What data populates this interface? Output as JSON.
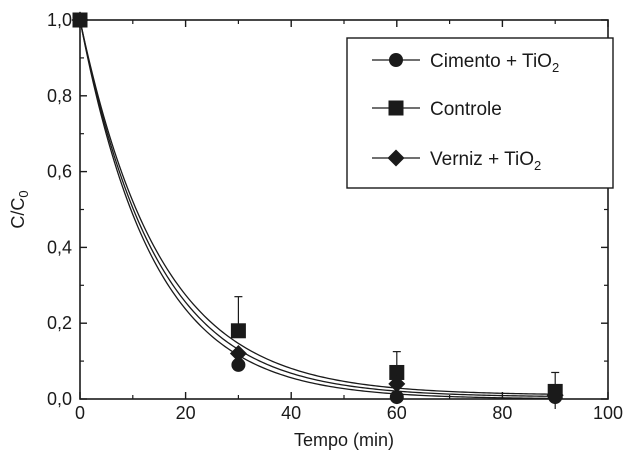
{
  "chart_data": {
    "type": "scatter",
    "xlabel": "Tempo (min)",
    "ylabel": {
      "main": "C/C",
      "sub": "0"
    },
    "xlim": [
      0,
      100
    ],
    "ylim": [
      0,
      1.0
    ],
    "xticks": [
      0,
      20,
      40,
      60,
      80,
      100
    ],
    "yticks": [
      0.0,
      0.2,
      0.4,
      0.6,
      0.8,
      1.0
    ],
    "xtick_labels": [
      "0",
      "20",
      "40",
      "60",
      "80",
      "100"
    ],
    "ytick_labels": [
      "0,0",
      "0,2",
      "0,4",
      "0,6",
      "0,8",
      "1,0"
    ],
    "grid": false,
    "legend_position": "top-right",
    "series": [
      {
        "name": "Cimento + TiO",
        "name_sub": "2",
        "marker": "circle",
        "x": [
          0,
          30,
          60,
          90
        ],
        "y": [
          1.0,
          0.09,
          0.005,
          0.005
        ],
        "fit_k": 0.072,
        "fit_c": 0.0
      },
      {
        "name": "Controle",
        "marker": "square",
        "x": [
          0,
          30,
          60,
          90
        ],
        "y": [
          1.0,
          0.18,
          0.07,
          0.02
        ],
        "error_upper": [
          0,
          0.09,
          0.055,
          0.05
        ],
        "fit_k": 0.066,
        "fit_c": 0.01
      },
      {
        "name": "Verniz + TiO",
        "name_sub": "2",
        "marker": "diamond",
        "x": [
          0,
          30,
          60,
          90
        ],
        "y": [
          1.0,
          0.12,
          0.04,
          0.01
        ],
        "fit_k": 0.069,
        "fit_c": 0.005
      }
    ],
    "color": "#1a1a1a"
  }
}
